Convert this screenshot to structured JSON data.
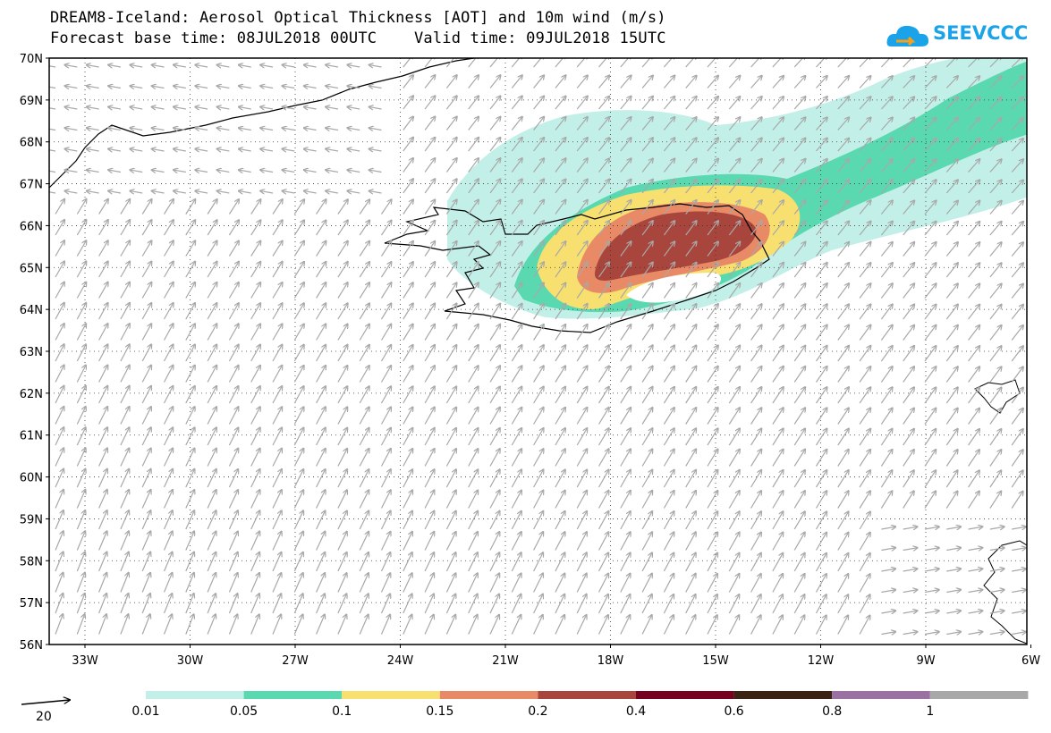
{
  "header": {
    "title_line1": "DREAM8-Iceland: Aerosol Optical Thickness [AOT] and 10m wind (m/s)",
    "title_line2": "Forecast base time: 08JUL2018 00UTC    Valid time: 09JUL2018 15UTC"
  },
  "logo": {
    "text": "SEEVCCC",
    "color": "#1aa3e8"
  },
  "map": {
    "lat_labels": [
      "70N",
      "69N",
      "68N",
      "67N",
      "66N",
      "65N",
      "64N",
      "63N",
      "62N",
      "61N",
      "60N",
      "59N",
      "58N",
      "57N",
      "56N"
    ],
    "lon_labels": [
      "33W",
      "30W",
      "27W",
      "24W",
      "21W",
      "18W",
      "15W",
      "12W",
      "9W",
      "6W"
    ],
    "wind_vector_color": "#a8a8a8",
    "coast_color": "#000000"
  },
  "legend": {
    "vector_ref_label": "20",
    "levels": [
      "0.01",
      "0.05",
      "0.1",
      "0.15",
      "0.2",
      "0.4",
      "0.6",
      "0.8",
      "1"
    ],
    "colors": [
      "#c2f0e8",
      "#5ad9b0",
      "#f7e070",
      "#e98a66",
      "#a8453c",
      "#76001f",
      "#3b2314",
      "#9b71a3",
      "#a8a8a8"
    ]
  }
}
